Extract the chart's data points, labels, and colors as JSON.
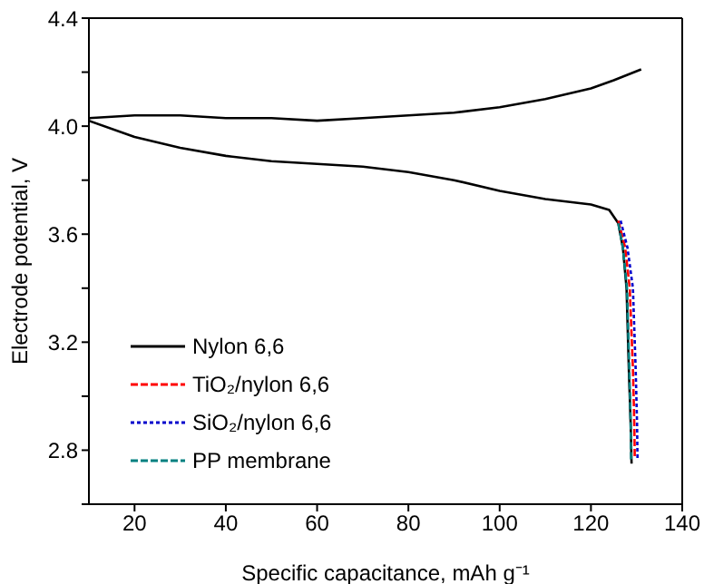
{
  "chart_data": {
    "type": "line",
    "xlabel": "Specific capacitance, mAh g⁻¹",
    "ylabel": "Electrode potential, V",
    "xlim": [
      10,
      140
    ],
    "xticks": [
      20,
      40,
      60,
      80,
      100,
      120,
      140
    ],
    "ylim": [
      2.6,
      4.4
    ],
    "yticks": [
      {
        "value": 2.6,
        "label": null
      },
      {
        "value": 2.8,
        "label": "2.8"
      },
      {
        "value": 3.0,
        "label": null
      },
      {
        "value": 3.2,
        "label": "3.2"
      },
      {
        "value": 3.4,
        "label": null
      },
      {
        "value": 3.6,
        "label": "3.6"
      },
      {
        "value": 3.8,
        "label": null
      },
      {
        "value": 4.0,
        "label": "4.0"
      },
      {
        "value": 4.2,
        "label": null
      },
      {
        "value": 4.4,
        "label": "4.4"
      }
    ],
    "legend": "bottom left",
    "marker": "none",
    "series": [
      {
        "name": "Nylon 6,6",
        "color": "#000000",
        "line_style": "solid",
        "x": [
          131,
          125,
          120,
          110,
          100,
          90,
          80,
          70,
          60,
          50,
          40,
          30,
          20,
          10,
          10,
          20,
          30,
          40,
          50,
          60,
          70,
          80,
          90,
          100,
          110,
          115,
          120,
          124,
          126,
          127,
          127.8,
          128.3,
          128.7,
          128.9
        ],
        "values": [
          4.21,
          4.17,
          4.14,
          4.1,
          4.07,
          4.05,
          4.04,
          4.03,
          4.02,
          4.03,
          4.03,
          4.04,
          4.04,
          4.03,
          4.02,
          3.96,
          3.92,
          3.89,
          3.87,
          3.86,
          3.85,
          3.83,
          3.8,
          3.76,
          3.73,
          3.72,
          3.71,
          3.69,
          3.64,
          3.55,
          3.4,
          3.1,
          2.9,
          2.75
        ]
      },
      {
        "name": "TiO₂/nylon 6,6",
        "color": "#ff0000",
        "line_style": "dashed",
        "x": [
          126,
          127.5,
          128.5,
          129.2,
          129.5,
          129.6
        ],
        "values": [
          3.65,
          3.55,
          3.4,
          3.1,
          2.9,
          2.77
        ]
      },
      {
        "name": "SiO₂/nylon 6,6",
        "color": "#0000cc",
        "line_style": "dotted",
        "x": [
          126.5,
          128,
          129.2,
          129.8,
          130.1,
          130.2
        ],
        "values": [
          3.65,
          3.55,
          3.4,
          3.1,
          2.9,
          2.77
        ]
      },
      {
        "name": "PP membrane",
        "color": "#008080",
        "line_style": "dashed",
        "x": [
          126,
          127,
          127.9,
          128.4,
          128.7,
          128.8
        ],
        "values": [
          3.64,
          3.55,
          3.4,
          3.1,
          2.9,
          2.76
        ]
      }
    ]
  }
}
